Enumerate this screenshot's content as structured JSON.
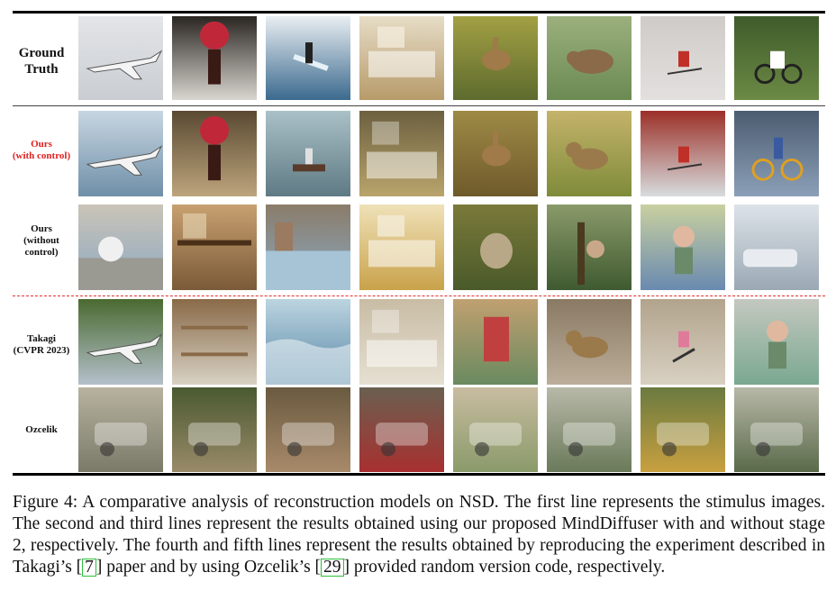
{
  "figure": {
    "rows": [
      {
        "id": "ground-truth",
        "label": "Ground\nTruth",
        "label_color": "#111111",
        "tiles": [
          {
            "icon": "airplane",
            "colors": [
              "#c9cdd2",
              "#e3e5e8"
            ]
          },
          {
            "icon": "flower-vase",
            "colors": [
              "#d9d6d0",
              "#2a2521"
            ]
          },
          {
            "icon": "surfer",
            "colors": [
              "#3b6a8e",
              "#e9eef2"
            ]
          },
          {
            "icon": "bathroom",
            "colors": [
              "#b79b6a",
              "#e6dcc6"
            ]
          },
          {
            "icon": "deer",
            "colors": [
              "#5d6b2d",
              "#a3a044"
            ]
          },
          {
            "icon": "bear",
            "colors": [
              "#6b8a52",
              "#9bb07d"
            ]
          },
          {
            "icon": "skier",
            "colors": [
              "#e2e0de",
              "#cfcbc8"
            ]
          },
          {
            "icon": "motorbike",
            "colors": [
              "#6c8a45",
              "#3f5b2a"
            ]
          }
        ]
      },
      {
        "id": "ours-control",
        "label": "Ours\n(with control)",
        "label_color": "#e02020",
        "tiles": [
          {
            "icon": "airplane",
            "colors": [
              "#6f8fa8",
              "#c7d6e1"
            ]
          },
          {
            "icon": "flower-vase",
            "colors": [
              "#bda57c",
              "#5a4a33"
            ]
          },
          {
            "icon": "boat",
            "colors": [
              "#5e7a84",
              "#aac0c7"
            ]
          },
          {
            "icon": "kitchen",
            "colors": [
              "#b9a46b",
              "#6c6040"
            ]
          },
          {
            "icon": "deer",
            "colors": [
              "#6f5a2b",
              "#9e8a45"
            ]
          },
          {
            "icon": "dog",
            "colors": [
              "#7f8b3a",
              "#c4b36a"
            ]
          },
          {
            "icon": "skier",
            "colors": [
              "#d7dcde",
              "#9c3028"
            ]
          },
          {
            "icon": "bicycle",
            "colors": [
              "#8ba0b8",
              "#4c5c70"
            ]
          }
        ]
      },
      {
        "id": "ours-no-control",
        "label": "Ours\n(without\ncontrol)",
        "label_color": "#111111",
        "tiles": [
          {
            "icon": "street",
            "colors": [
              "#8da8c2",
              "#c9c4b7"
            ]
          },
          {
            "icon": "cafe",
            "colors": [
              "#7a5a38",
              "#c8a070"
            ]
          },
          {
            "icon": "city-water",
            "colors": [
              "#8aa8c0",
              "#8a7c6a"
            ]
          },
          {
            "icon": "bathroom",
            "colors": [
              "#c9a24a",
              "#efe1b8"
            ]
          },
          {
            "icon": "animal",
            "colors": [
              "#4a5a2a",
              "#7a7a3a"
            ]
          },
          {
            "icon": "forest",
            "colors": [
              "#3f5a30",
              "#8a9a6a"
            ]
          },
          {
            "icon": "person",
            "colors": [
              "#6a8ab0",
              "#c8d0a0"
            ]
          },
          {
            "icon": "car",
            "colors": [
              "#9aa8b4",
              "#dde3e8"
            ]
          }
        ]
      },
      {
        "id": "takagi",
        "label": "Takagi\n(CVPR 2023)",
        "label_color": "#111111",
        "tiles": [
          {
            "icon": "airplane",
            "colors": [
              "#b4c0cb",
              "#4a6a30"
            ]
          },
          {
            "icon": "shelf",
            "colors": [
              "#d8d2c4",
              "#8a6a48"
            ]
          },
          {
            "icon": "waves",
            "colors": [
              "#5a8aa8",
              "#bcd4e0"
            ]
          },
          {
            "icon": "kitchen",
            "colors": [
              "#e6e0d2",
              "#c8bca4"
            ]
          },
          {
            "icon": "poster",
            "colors": [
              "#6a8a60",
              "#c0a070"
            ]
          },
          {
            "icon": "dog",
            "colors": [
              "#bcae9a",
              "#8a7a64"
            ]
          },
          {
            "icon": "runner",
            "colors": [
              "#d8d0c2",
              "#b2a48c"
            ]
          },
          {
            "icon": "person",
            "colors": [
              "#7aa890",
              "#c4c8c0"
            ]
          }
        ]
      },
      {
        "id": "ozcelik",
        "label": "Ozcelik",
        "label_color": "#111111",
        "tiles": [
          {
            "icon": "machine",
            "colors": [
              "#7a7a68",
              "#b8b2a0"
            ]
          },
          {
            "icon": "machine",
            "colors": [
              "#9a8a6a",
              "#4a5a30"
            ]
          },
          {
            "icon": "machine",
            "colors": [
              "#a88a6a",
              "#6a5a40"
            ]
          },
          {
            "icon": "machine",
            "colors": [
              "#a83030",
              "#6a6050"
            ]
          },
          {
            "icon": "machine",
            "colors": [
              "#8a9a6a",
              "#c8bca0"
            ]
          },
          {
            "icon": "machine",
            "colors": [
              "#6a7a5a",
              "#b8b8a8"
            ]
          },
          {
            "icon": "machine",
            "colors": [
              "#c8a040",
              "#6a7a40"
            ]
          },
          {
            "icon": "machine",
            "colors": [
              "#5a6a4a",
              "#b8b8a8"
            ]
          }
        ]
      }
    ]
  },
  "caption": {
    "lead": "Figure 4:",
    "text1": "A comparative analysis of reconstruction models on NSD. The first line represents the stimulus images.  The second and third lines represent the results obtained using our proposed MindDiffuser with and without stage 2, respectively. The fourth and fifth lines represent the results obtained by reproducing the experiment described in Takagi’s ",
    "cite1": "7",
    "text2": " paper and by using Ozcelik’s ",
    "cite2": "29",
    "text3": " provided random version code, respectively."
  }
}
